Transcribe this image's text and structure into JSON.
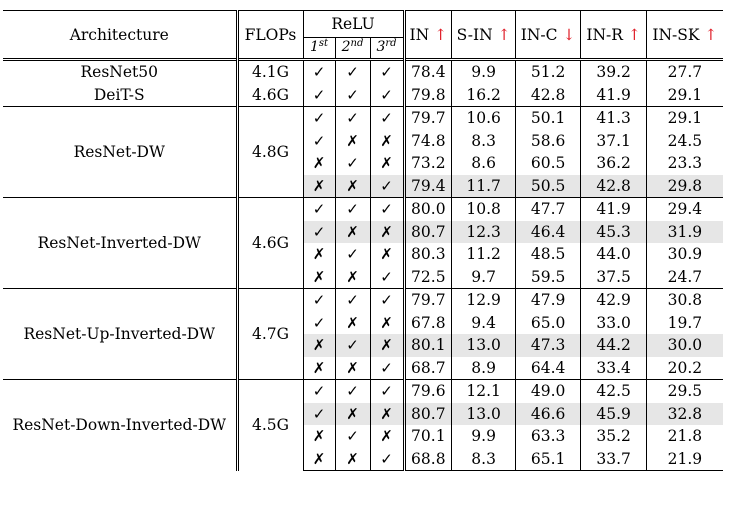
{
  "header": {
    "architecture": "Architecture",
    "flops": "FLOPs",
    "relu": "ReLU",
    "relu_cols": [
      {
        "base": "1",
        "sup": "st"
      },
      {
        "base": "2",
        "sup": "nd"
      },
      {
        "base": "3",
        "sup": "rd"
      }
    ],
    "metrics": [
      {
        "label": "IN",
        "arrow": "↑"
      },
      {
        "label": "S-IN",
        "arrow": "↑"
      },
      {
        "label": "IN-C",
        "arrow": "↓"
      },
      {
        "label": "IN-R",
        "arrow": "↑"
      },
      {
        "label": "IN-SK",
        "arrow": "↑"
      }
    ]
  },
  "colors": {
    "arrow": "#e0212b",
    "highlight_row": "#e6e6e6"
  },
  "groups": [
    {
      "rows": [
        {
          "arch": "ResNet50",
          "flops": "4.1G",
          "relu": [
            "✓",
            "✓",
            "✓"
          ],
          "vals": [
            "78.4",
            "9.9",
            "51.2",
            "39.2",
            "27.7"
          ],
          "highlight": false
        },
        {
          "arch": "DeiT-S",
          "flops": "4.6G",
          "relu": [
            "✓",
            "✓",
            "✓"
          ],
          "vals": [
            "79.8",
            "16.2",
            "42.8",
            "41.9",
            "29.1"
          ],
          "highlight": false
        }
      ]
    },
    {
      "arch": "ResNet-DW",
      "flops": "4.8G",
      "rows": [
        {
          "relu": [
            "✓",
            "✓",
            "✓"
          ],
          "vals": [
            "79.7",
            "10.6",
            "50.1",
            "41.3",
            "29.1"
          ],
          "highlight": false
        },
        {
          "relu": [
            "✓",
            "✗",
            "✗"
          ],
          "vals": [
            "74.8",
            "8.3",
            "58.6",
            "37.1",
            "24.5"
          ],
          "highlight": false
        },
        {
          "relu": [
            "✗",
            "✓",
            "✗"
          ],
          "vals": [
            "73.2",
            "8.6",
            "60.5",
            "36.2",
            "23.3"
          ],
          "highlight": false
        },
        {
          "relu": [
            "✗",
            "✗",
            "✓"
          ],
          "vals": [
            "79.4",
            "11.7",
            "50.5",
            "42.8",
            "29.8"
          ],
          "highlight": true
        }
      ]
    },
    {
      "arch": "ResNet-Inverted-DW",
      "flops": "4.6G",
      "rows": [
        {
          "relu": [
            "✓",
            "✓",
            "✓"
          ],
          "vals": [
            "80.0",
            "10.8",
            "47.7",
            "41.9",
            "29.4"
          ],
          "highlight": false
        },
        {
          "relu": [
            "✓",
            "✗",
            "✗"
          ],
          "vals": [
            "80.7",
            "12.3",
            "46.4",
            "45.3",
            "31.9"
          ],
          "highlight": true
        },
        {
          "relu": [
            "✗",
            "✓",
            "✗"
          ],
          "vals": [
            "80.3",
            "11.2",
            "48.5",
            "44.0",
            "30.9"
          ],
          "highlight": false
        },
        {
          "relu": [
            "✗",
            "✗",
            "✓"
          ],
          "vals": [
            "72.5",
            "9.7",
            "59.5",
            "37.5",
            "24.7"
          ],
          "highlight": false
        }
      ]
    },
    {
      "arch": "ResNet-Up-Inverted-DW",
      "flops": "4.7G",
      "rows": [
        {
          "relu": [
            "✓",
            "✓",
            "✓"
          ],
          "vals": [
            "79.7",
            "12.9",
            "47.9",
            "42.9",
            "30.8"
          ],
          "highlight": false
        },
        {
          "relu": [
            "✓",
            "✗",
            "✗"
          ],
          "vals": [
            "67.8",
            "9.4",
            "65.0",
            "33.0",
            "19.7"
          ],
          "highlight": false
        },
        {
          "relu": [
            "✗",
            "✓",
            "✗"
          ],
          "vals": [
            "80.1",
            "13.0",
            "47.3",
            "44.2",
            "30.0"
          ],
          "highlight": true
        },
        {
          "relu": [
            "✗",
            "✗",
            "✓"
          ],
          "vals": [
            "68.7",
            "8.9",
            "64.4",
            "33.4",
            "20.2"
          ],
          "highlight": false
        }
      ]
    },
    {
      "arch": "ResNet-Down-Inverted-DW",
      "flops": "4.5G",
      "rows": [
        {
          "relu": [
            "✓",
            "✓",
            "✓"
          ],
          "vals": [
            "79.6",
            "12.1",
            "49.0",
            "42.5",
            "29.5"
          ],
          "highlight": false
        },
        {
          "relu": [
            "✓",
            "✗",
            "✗"
          ],
          "vals": [
            "80.7",
            "13.0",
            "46.6",
            "45.9",
            "32.8"
          ],
          "highlight": true
        },
        {
          "relu": [
            "✗",
            "✓",
            "✗"
          ],
          "vals": [
            "70.1",
            "9.9",
            "63.3",
            "35.2",
            "21.8"
          ],
          "highlight": false
        },
        {
          "relu": [
            "✗",
            "✗",
            "✓"
          ],
          "vals": [
            "68.8",
            "8.3",
            "65.1",
            "33.7",
            "21.9"
          ],
          "highlight": false
        }
      ]
    }
  ]
}
